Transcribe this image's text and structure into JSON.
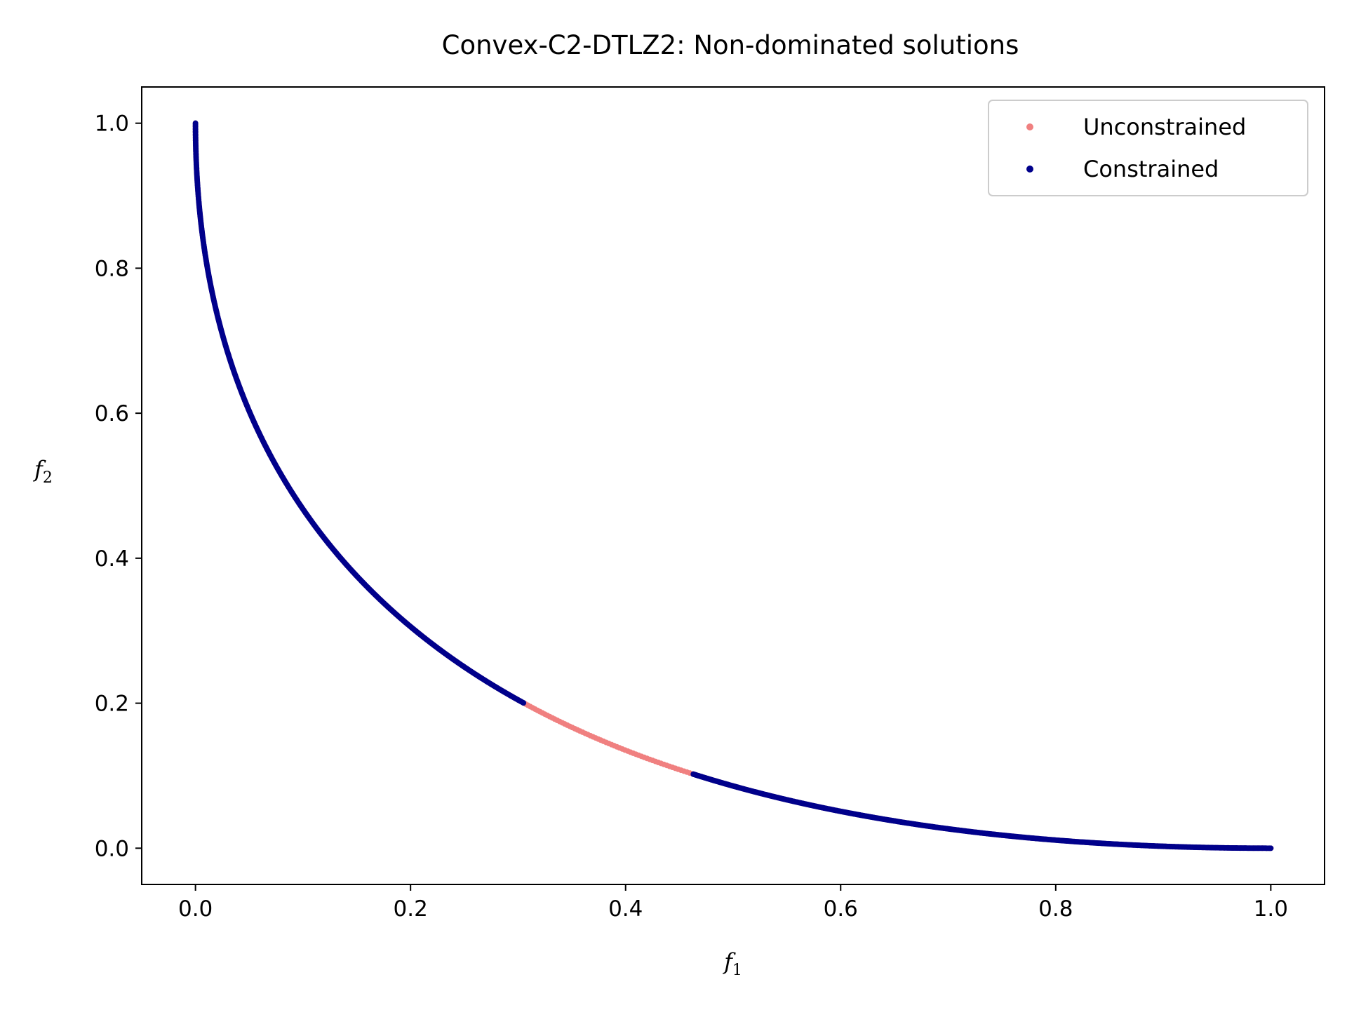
{
  "chart_data": {
    "type": "scatter",
    "title": "Convex-C2-DTLZ2: Non-dominated solutions",
    "xlabel": "f",
    "xlabel_sub": "1",
    "ylabel": "f",
    "ylabel_sub": "2",
    "xlim": [
      -0.05,
      1.05
    ],
    "ylim": [
      -0.05,
      1.05
    ],
    "xticks": [
      0.0,
      0.2,
      0.4,
      0.6,
      0.8,
      1.0
    ],
    "xtick_labels": [
      "0.0",
      "0.2",
      "0.4",
      "0.6",
      "0.8",
      "1.0"
    ],
    "yticks": [
      0.0,
      0.2,
      0.4,
      0.6,
      0.8,
      1.0
    ],
    "ytick_labels": [
      "0.0",
      "0.2",
      "0.4",
      "0.6",
      "0.8",
      "1.0"
    ],
    "grid": false,
    "legend_position": "top-right",
    "front_shape": "f2 = (1 - sqrt(f1))^2 for f1 in [0, 1]",
    "series": [
      {
        "name": "Unconstrained",
        "color": "#f08080",
        "f1_range": [
          0.0,
          1.0
        ],
        "points": [
          [
            0.0,
            1.0
          ],
          [
            0.1,
            0.468
          ],
          [
            0.2,
            0.306
          ],
          [
            0.3,
            0.2
          ],
          [
            0.4,
            0.135
          ],
          [
            0.5,
            0.086
          ],
          [
            0.6,
            0.051
          ],
          [
            0.7,
            0.026
          ],
          [
            0.8,
            0.011
          ],
          [
            0.9,
            0.003
          ],
          [
            1.0,
            0.0
          ]
        ]
      },
      {
        "name": "Constrained",
        "color": "#00008b",
        "f1_ranges": [
          [
            0.0,
            0.305
          ],
          [
            0.463,
            1.0
          ]
        ],
        "points": [
          [
            0.0,
            1.0
          ],
          [
            0.1,
            0.468
          ],
          [
            0.2,
            0.306
          ],
          [
            0.3,
            0.2
          ],
          [
            0.47,
            0.099
          ],
          [
            0.6,
            0.051
          ],
          [
            0.7,
            0.026
          ],
          [
            0.8,
            0.011
          ],
          [
            0.9,
            0.003
          ],
          [
            1.0,
            0.0
          ]
        ]
      }
    ]
  }
}
